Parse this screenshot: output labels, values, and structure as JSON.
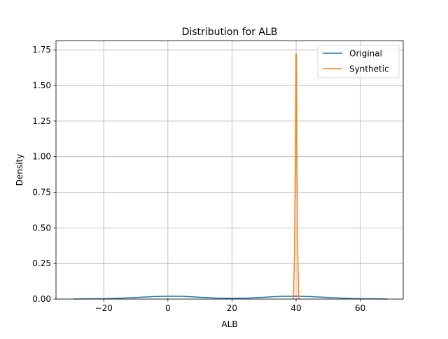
{
  "chart_data": {
    "type": "line",
    "title": "Distribution for ALB",
    "xlabel": "ALB",
    "ylabel": "Density",
    "xlim": [
      -34.9,
      73.4
    ],
    "ylim": [
      0,
      1.815
    ],
    "xticks": [
      -20,
      0,
      20,
      40,
      60
    ],
    "yticks": [
      0.0,
      0.25,
      0.5,
      0.75,
      1.0,
      1.25,
      1.5,
      1.75
    ],
    "xtick_labels": [
      "−20",
      "0",
      "20",
      "40",
      "60"
    ],
    "ytick_labels": [
      "0.00",
      "0.25",
      "0.50",
      "0.75",
      "1.00",
      "1.25",
      "1.50",
      "1.75"
    ],
    "grid": true,
    "legend_position": "upper right",
    "series": [
      {
        "name": "Original",
        "color": "#1f77b4",
        "x": [
          -29.5,
          -25,
          -20,
          -15,
          -10,
          -5,
          0,
          5,
          10,
          15,
          20,
          25,
          30,
          35,
          40,
          45,
          50,
          55,
          60,
          65,
          68.5
        ],
        "y": [
          0.0005,
          0.001,
          0.0025,
          0.006,
          0.011,
          0.017,
          0.0205,
          0.019,
          0.013,
          0.0075,
          0.0055,
          0.0075,
          0.013,
          0.019,
          0.0205,
          0.017,
          0.011,
          0.006,
          0.0025,
          0.001,
          0.0005
        ]
      },
      {
        "name": "Synthetic",
        "color": "#ff7f0e",
        "x": [
          39.2,
          39.5,
          39.8,
          39.95,
          40.05,
          40.2,
          40.5,
          40.8
        ],
        "y": [
          0.0,
          0.35,
          1.12,
          1.72,
          1.72,
          1.12,
          0.35,
          0.0
        ]
      }
    ]
  }
}
